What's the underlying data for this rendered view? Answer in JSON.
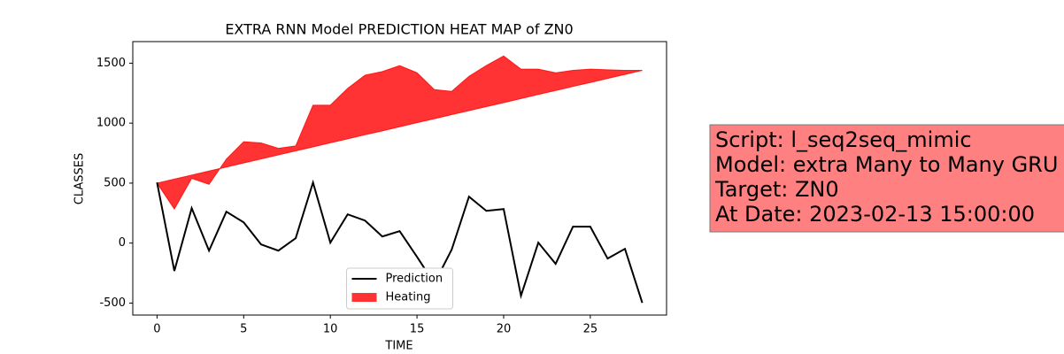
{
  "chart_data": {
    "type": "line",
    "title": "EXTRA RNN Model PREDICTION HEAT MAP of ZN0",
    "xlabel": "TIME",
    "ylabel": "CLASSES",
    "x": [
      0,
      1,
      2,
      3,
      4,
      5,
      6,
      7,
      8,
      9,
      10,
      11,
      12,
      13,
      14,
      15,
      16,
      17,
      18,
      19,
      20,
      21,
      22,
      23,
      24,
      25,
      26,
      27,
      28
    ],
    "series": [
      {
        "name": "Prediction",
        "color": "#000000",
        "kind": "line",
        "values": [
          505,
          -232,
          291,
          -63,
          262,
          173,
          -11,
          -63,
          41,
          505,
          4,
          240,
          188,
          55,
          100,
          -114,
          -336,
          -55,
          387,
          269,
          284,
          -439,
          4,
          -173,
          137,
          137,
          -129,
          -48,
          -498
        ]
      },
      {
        "name": "Heating",
        "color": "#ff0000",
        "kind": "area",
        "values": [
          500,
          284,
          540,
          490,
          700,
          845,
          835,
          790,
          810,
          1150,
          1150,
          1290,
          1400,
          1430,
          1480,
          1420,
          1280,
          1265,
          1390,
          1480,
          1560,
          1450,
          1450,
          1420,
          1440,
          1450,
          1445,
          1440,
          1440
        ],
        "lower": [
          500,
          534,
          567,
          601,
          634,
          668,
          701,
          735,
          769,
          802,
          836,
          869,
          903,
          936,
          970,
          1004,
          1037,
          1071,
          1104,
          1138,
          1171,
          1205,
          1239,
          1272,
          1306,
          1339,
          1373,
          1406,
          1440
        ]
      }
    ],
    "xlim": [
      -1.4,
      29.4
    ],
    "ylim": [
      -600,
      1680
    ],
    "xticks": [
      0,
      5,
      10,
      15,
      20,
      25
    ],
    "yticks": [
      -500,
      0,
      500,
      1000,
      1500
    ],
    "legend": "lower center",
    "annotation": [
      "Script: l_seq2seq_mimic",
      "Model: extra Many to Many GRU",
      "Target: ZN0",
      "At Date: 2023-02-13 15:00:00"
    ]
  }
}
